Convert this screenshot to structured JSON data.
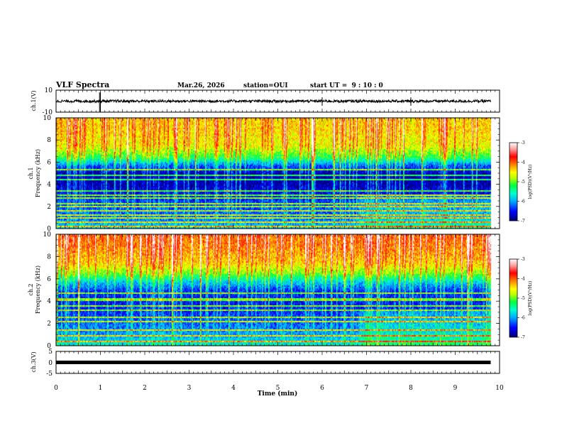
{
  "header": {
    "title": "VLF Spectra",
    "date": "Mar.26, 2026",
    "station": "station=OUI",
    "start_ut": "start UT =  9 : 10 : 0"
  },
  "panels": {
    "ch1_waveform": {
      "ylabel": "ch.1(V)",
      "yticks": [
        "10",
        "-10"
      ]
    },
    "ch1_spectrogram": {
      "ylabel_line1": "ch.1",
      "ylabel_line2": "Frequency (kHz)"
    },
    "ch2_spectrogram": {
      "ylabel_line1": "ch.2",
      "ylabel_line2": "Frequency (kHz)"
    },
    "ch3_waveform": {
      "ylabel": "ch.3(V)",
      "yticks": [
        "5",
        "0",
        "-5"
      ]
    }
  },
  "colorbar": {
    "label": "log(PSD)(V²/Hz)",
    "ticks": [
      "-3",
      "-4",
      "-5",
      "-6",
      "-7"
    ],
    "colors": [
      "#000070",
      "#0000ff",
      "#00aaff",
      "#00ffd0",
      "#00ff40",
      "#c0ff00",
      "#ffff00",
      "#ff8000",
      "#ff0000",
      "#ffa0a0",
      "#ffffff"
    ]
  },
  "chart_data": {
    "type": "heatmap",
    "title": "VLF Spectra",
    "xlabel": "Time (min)",
    "xlim": [
      0,
      10
    ],
    "x_ticks": [
      "0",
      "1",
      "2",
      "3",
      "4",
      "5",
      "6",
      "7",
      "8",
      "9",
      "10"
    ],
    "data_end_min": 9.8,
    "ch1_waveform": {
      "ylim": [
        -10,
        10
      ],
      "typical_amplitude_v": 1.2,
      "spikes_at_min": [
        0.98,
        1.0,
        6.0,
        8.0
      ]
    },
    "ch3_waveform": {
      "ylim": [
        -5,
        5
      ],
      "level_v": 0
    },
    "spectrograms": [
      {
        "channel": "ch.1",
        "ylabel": "Frequency (kHz)",
        "ylim": [
          0,
          10
        ],
        "y_ticks": [
          "0",
          "2",
          "4",
          "6",
          "8",
          "10"
        ],
        "zlim": [
          -7,
          -3
        ],
        "zlabel": "log(PSD)(V²/Hz)",
        "log_psd_profile": [
          {
            "freq_khz": 0,
            "log_psd": -5.8
          },
          {
            "freq_khz": 1,
            "log_psd": -6.2
          },
          {
            "freq_khz": 2,
            "log_psd": -6.3
          },
          {
            "freq_khz": 3,
            "log_psd": -6.5
          },
          {
            "freq_khz": 4,
            "log_psd": -6.8
          },
          {
            "freq_khz": 5,
            "log_psd": -6.8
          },
          {
            "freq_khz": 5.8,
            "log_psd": -6.2
          },
          {
            "freq_khz": 6.5,
            "log_psd": -5.2
          },
          {
            "freq_khz": 7.5,
            "log_psd": -4.6
          },
          {
            "freq_khz": 9,
            "log_psd": -4.4
          },
          {
            "freq_khz": 10,
            "log_psd": -4.4
          }
        ],
        "lines_khz": [
          0.3,
          0.6,
          1.0,
          1.3,
          1.7,
          2.0,
          2.3,
          2.8,
          3.1,
          3.5,
          4.5,
          4.9,
          5.4
        ],
        "transition_min": 6.8
      },
      {
        "channel": "ch.2",
        "ylabel": "Frequency (kHz)",
        "ylim": [
          0,
          10
        ],
        "y_ticks": [
          "0",
          "2",
          "4",
          "6",
          "8",
          "10"
        ],
        "zlim": [
          -7,
          -3
        ],
        "zlabel": "log(PSD)(V²/Hz)",
        "log_psd_profile": [
          {
            "freq_khz": 0,
            "log_psd": -5.6
          },
          {
            "freq_khz": 1,
            "log_psd": -6.0
          },
          {
            "freq_khz": 2,
            "log_psd": -6.2
          },
          {
            "freq_khz": 3,
            "log_psd": -6.4
          },
          {
            "freq_khz": 4,
            "log_psd": -6.5
          },
          {
            "freq_khz": 5,
            "log_psd": -6.4
          },
          {
            "freq_khz": 5.8,
            "log_psd": -5.8
          },
          {
            "freq_khz": 6.5,
            "log_psd": -5.0
          },
          {
            "freq_khz": 7.5,
            "log_psd": -4.4
          },
          {
            "freq_khz": 9,
            "log_psd": -4.1
          },
          {
            "freq_khz": 10,
            "log_psd": -4.0
          }
        ],
        "lines_khz": [
          0.5,
          1.0,
          1.5,
          2.2,
          2.6,
          3.2,
          3.6,
          4.2,
          4.8
        ],
        "transition_min": 6.8
      }
    ]
  }
}
